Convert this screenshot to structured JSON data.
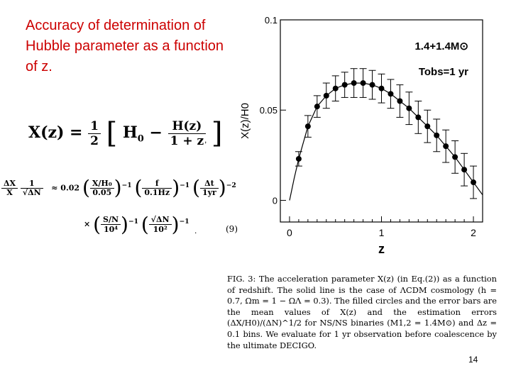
{
  "slide": {
    "title": "Accuracy of determination of Hubble parameter as a function  of z.",
    "page_number": "14"
  },
  "equations": {
    "eq1_lhs": "X(z) =",
    "eq1_half_num": "1",
    "eq1_half_den": "2",
    "eq1_h0": "H",
    "eq1_h0_sub": "0",
    "eq1_minus": "−",
    "eq1_hz_num": "H(z)",
    "eq1_hz_den": "1 + z",
    "eq1_comma": ",",
    "eq2_lhs_num": "ΔX",
    "eq2_lhs_den": "X",
    "eq2_sqrt_num": "1",
    "eq2_sqrt_den": "√ΔN",
    "eq2_approx": "≈ 0.02",
    "eq2_f1_num": "X/H₀",
    "eq2_f1_den": "0.05",
    "eq2_f2_num": "f",
    "eq2_f2_den": "0.1Hz",
    "eq2_f3_num": "Δt",
    "eq2_f3_den": "1yr",
    "exp_m1": "−1",
    "exp_m2": "−2",
    "eq3_times": "×",
    "eq3_f1_num": "S/N",
    "eq3_f1_den": "10⁴",
    "eq3_f2_num": "√ΔN",
    "eq3_f2_den": "10²",
    "eq3_period": ".",
    "eq_number": "(9)"
  },
  "caption": {
    "text": "FIG. 3:  The acceleration parameter X(z) (in Eq.(2)) as a function of redshift.  The solid line is the case of ΛCDM cosmology (h = 0.7, Ωm = 1 − ΩΛ = 0.3).  The filled circles and the error bars are the mean values of X(z) and the estimation errors (ΔX/H0)/(ΔN)^1/2 for NS/NS binaries (M1,2 = 1.4M⊙) and Δz = 0.1 bins.  We evaluate for 1 yr observation before coalescence by the ultimate DECIGO."
  },
  "chart_data": {
    "type": "scatter",
    "xlabel": "z",
    "ylabel": "X(z)/H0",
    "xlim": [
      -0.1,
      2.1
    ],
    "ylim": [
      -0.012,
      0.1
    ],
    "x_ticks": [
      0,
      1,
      2
    ],
    "x_tick_labels": [
      "0",
      "1",
      "2"
    ],
    "y_ticks": [
      0,
      0.05,
      0.1
    ],
    "y_tick_labels": [
      "0",
      "0.05",
      "0.1"
    ],
    "legend": [
      "1.4+1.4M⊙",
      "Tobs=1 yr"
    ],
    "legend_position": "top-right",
    "grid": false,
    "colors": {
      "points": "#000000",
      "line": "#000000",
      "accent_title": "#cc0000"
    },
    "series": [
      {
        "x": [
          0.1,
          0.2,
          0.3,
          0.4,
          0.5,
          0.6,
          0.7,
          0.8,
          0.9,
          1.0,
          1.1,
          1.2,
          1.3,
          1.4,
          1.5,
          1.6,
          1.7,
          1.8,
          1.9,
          2.0
        ],
        "y": [
          0.023,
          0.041,
          0.052,
          0.058,
          0.062,
          0.064,
          0.065,
          0.065,
          0.064,
          0.062,
          0.059,
          0.055,
          0.051,
          0.046,
          0.041,
          0.036,
          0.03,
          0.024,
          0.017,
          0.01
        ],
        "err": [
          0.004,
          0.006,
          0.006,
          0.007,
          0.007,
          0.007,
          0.008,
          0.008,
          0.008,
          0.008,
          0.008,
          0.009,
          0.009,
          0.009,
          0.009,
          0.009,
          0.009,
          0.009,
          0.009,
          0.009
        ]
      }
    ],
    "model_curve": {
      "x": [
        0.0,
        0.05,
        0.1,
        0.2,
        0.3,
        0.4,
        0.5,
        0.6,
        0.7,
        0.8,
        0.9,
        1.0,
        1.1,
        1.2,
        1.3,
        1.4,
        1.5,
        1.6,
        1.7,
        1.8,
        1.9,
        2.0,
        2.1
      ],
      "y": [
        0.0,
        0.012,
        0.023,
        0.041,
        0.052,
        0.058,
        0.062,
        0.064,
        0.065,
        0.065,
        0.064,
        0.062,
        0.059,
        0.055,
        0.051,
        0.046,
        0.041,
        0.036,
        0.03,
        0.024,
        0.017,
        0.01,
        0.003
      ]
    }
  }
}
